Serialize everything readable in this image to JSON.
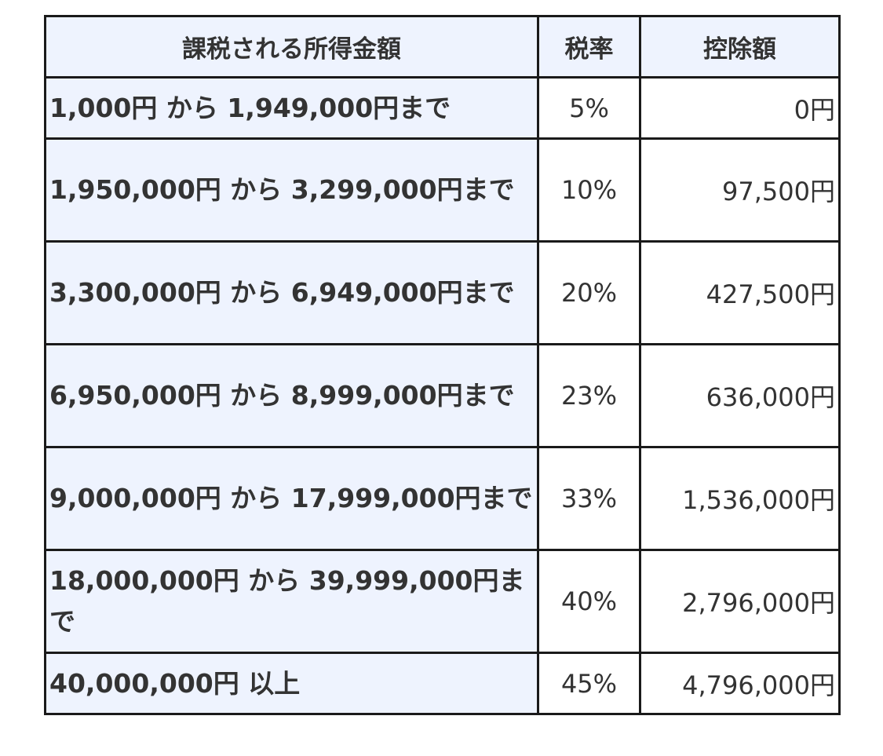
{
  "table": {
    "headers": {
      "income": "課税される所得金額",
      "rate": "税率",
      "deduction": "控除額"
    },
    "rows": [
      {
        "income": "1,000円 から 1,949,000円まで",
        "rate": "5%",
        "deduction": "0円"
      },
      {
        "income": "1,950,000円 から 3,299,000円まで",
        "rate": "10%",
        "deduction": "97,500円"
      },
      {
        "income": "3,300,000円 から 6,949,000円まで",
        "rate": "20%",
        "deduction": "427,500円"
      },
      {
        "income": "6,950,000円 から 8,999,000円まで",
        "rate": "23%",
        "deduction": "636,000円"
      },
      {
        "income": "9,000,000円 から 17,999,000円まで",
        "rate": "33%",
        "deduction": "1,536,000円"
      },
      {
        "income": "18,000,000円 から 39,999,000円まで",
        "rate": "40%",
        "deduction": "2,796,000円"
      },
      {
        "income": "40,000,000円 以上",
        "rate": "45%",
        "deduction": "4,796,000円"
      }
    ]
  }
}
